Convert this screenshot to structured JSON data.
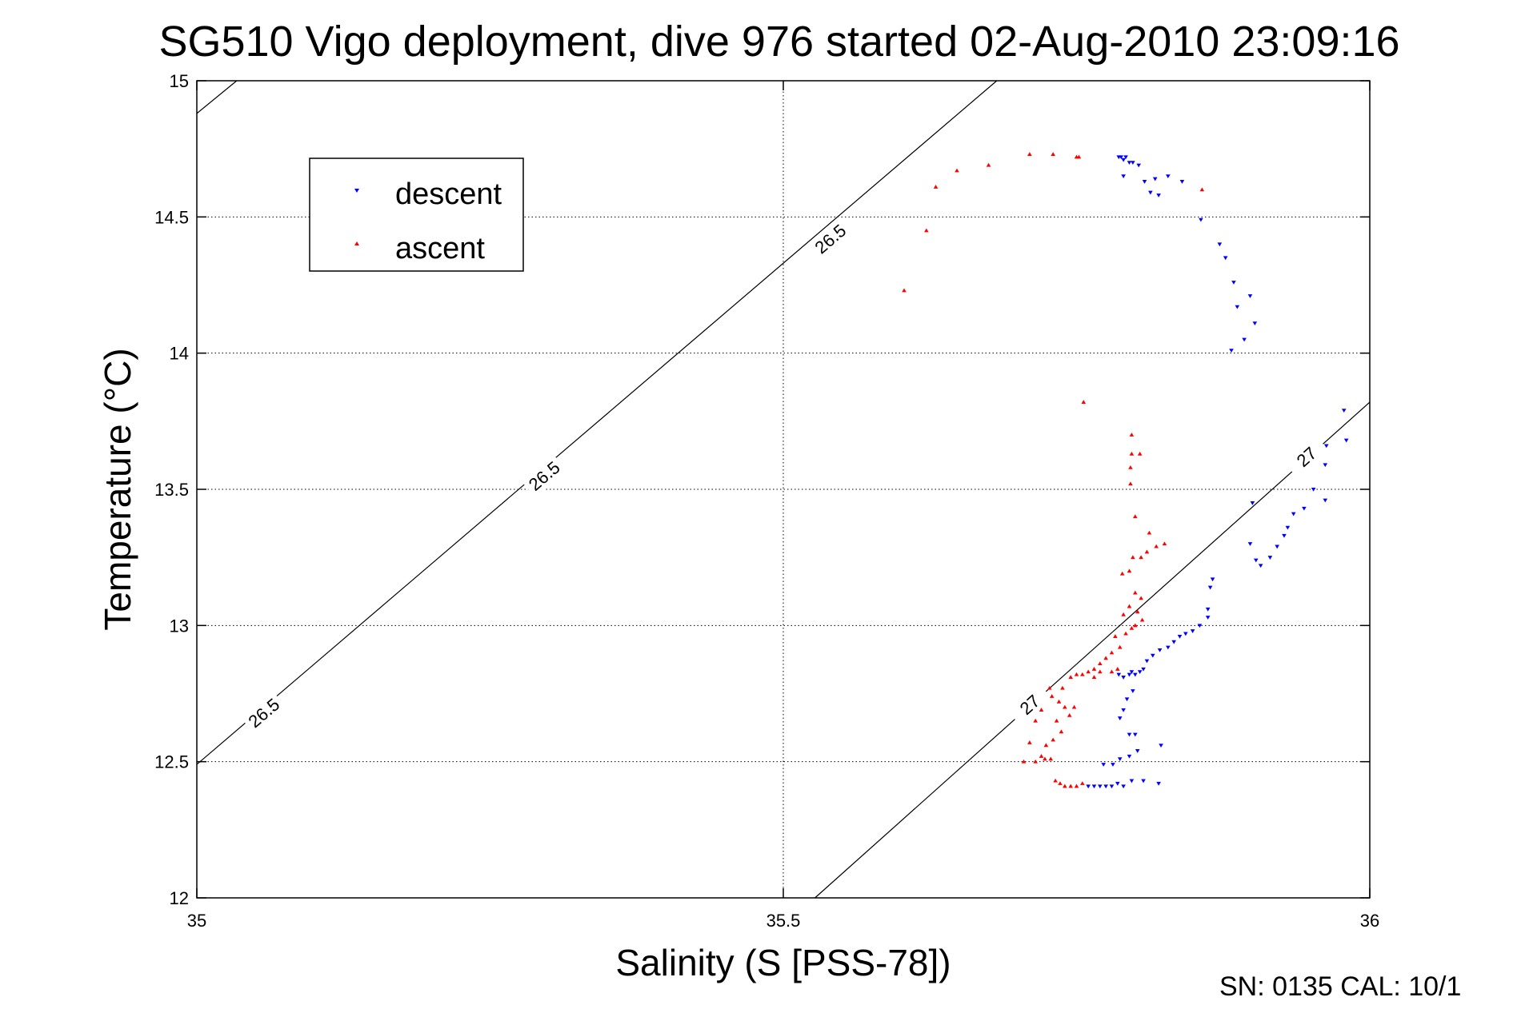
{
  "chart_data": {
    "type": "scatter",
    "title": "SG510 Vigo deployment, dive 976 started 02-Aug-2010 23:09:16",
    "xlabel": "Salinity (S [PSS-78])",
    "ylabel": "Temperature (°C)",
    "xlim": [
      35,
      36
    ],
    "ylim": [
      12,
      15
    ],
    "x_ticks": [
      "35",
      "35.5",
      "36"
    ],
    "y_ticks": [
      "12",
      "12.5",
      "13",
      "13.5",
      "14",
      "14.5",
      "15"
    ],
    "grid": true,
    "legend_position": "top-left",
    "footer": "SN: 0135  CAL: 10/1",
    "colors": {
      "descent": "#0000ff",
      "ascent": "#ff0000",
      "axes": "#000000",
      "grid": "#000000"
    },
    "contours": [
      {
        "label": "26.5",
        "lines": [
          [
            [
              35.0,
              14.88
            ],
            [
              35.034,
              15.0
            ]
          ],
          [
            [
              35.0,
              12.49
            ],
            [
              35.682,
              15.0
            ]
          ]
        ],
        "labels_at": [
          [
            35.057,
            12.68
          ],
          [
            35.296,
            13.55
          ],
          [
            35.54,
            14.42
          ]
        ]
      },
      {
        "label": "27",
        "lines": [
          [
            [
              35.527,
              12.0
            ],
            [
              36.0,
              13.82
            ]
          ]
        ],
        "labels_at": [
          [
            35.71,
            12.71
          ],
          [
            35.946,
            13.62
          ]
        ]
      }
    ],
    "series": [
      {
        "name": "descent",
        "marker": "triangle-down",
        "points": [
          [
            35.786,
            14.72
          ],
          [
            35.788,
            14.72
          ],
          [
            35.79,
            14.71
          ],
          [
            35.792,
            14.72
          ],
          [
            35.795,
            14.7
          ],
          [
            35.798,
            14.7
          ],
          [
            35.803,
            14.69
          ],
          [
            35.79,
            14.65
          ],
          [
            35.808,
            14.63
          ],
          [
            35.817,
            14.64
          ],
          [
            35.813,
            14.59
          ],
          [
            35.82,
            14.58
          ],
          [
            35.828,
            14.65
          ],
          [
            35.84,
            14.63
          ],
          [
            35.856,
            14.49
          ],
          [
            35.872,
            14.4
          ],
          [
            35.877,
            14.35
          ],
          [
            35.884,
            14.26
          ],
          [
            35.887,
            14.17
          ],
          [
            35.898,
            14.21
          ],
          [
            35.902,
            14.11
          ],
          [
            35.893,
            14.05
          ],
          [
            35.882,
            14.01
          ],
          [
            35.978,
            13.79
          ],
          [
            35.98,
            13.68
          ],
          [
            35.963,
            13.66
          ],
          [
            35.962,
            13.59
          ],
          [
            35.952,
            13.5
          ],
          [
            35.962,
            13.46
          ],
          [
            35.944,
            13.43
          ],
          [
            35.93,
            13.36
          ],
          [
            35.935,
            13.41
          ],
          [
            35.927,
            13.33
          ],
          [
            35.921,
            13.29
          ],
          [
            35.915,
            13.25
          ],
          [
            35.907,
            13.22
          ],
          [
            35.903,
            13.24
          ],
          [
            35.898,
            13.3
          ],
          [
            35.9,
            13.45
          ],
          [
            35.866,
            13.17
          ],
          [
            35.864,
            13.14
          ],
          [
            35.862,
            13.06
          ],
          [
            35.862,
            13.03
          ],
          [
            35.855,
            13.0
          ],
          [
            35.849,
            12.98
          ],
          [
            35.843,
            12.97
          ],
          [
            35.838,
            12.96
          ],
          [
            35.833,
            12.94
          ],
          [
            35.828,
            12.92
          ],
          [
            35.821,
            12.91
          ],
          [
            35.815,
            12.89
          ],
          [
            35.81,
            12.87
          ],
          [
            35.807,
            12.84
          ],
          [
            35.804,
            12.83
          ],
          [
            35.8,
            12.82
          ],
          [
            35.797,
            12.83
          ],
          [
            35.795,
            12.82
          ],
          [
            35.79,
            12.81
          ],
          [
            35.786,
            12.82
          ],
          [
            35.798,
            12.76
          ],
          [
            35.793,
            12.73
          ],
          [
            35.79,
            12.69
          ],
          [
            35.787,
            12.66
          ],
          [
            35.8,
            12.6
          ],
          [
            35.795,
            12.6
          ],
          [
            35.822,
            12.56
          ],
          [
            35.802,
            12.54
          ],
          [
            35.795,
            12.52
          ],
          [
            35.787,
            12.51
          ],
          [
            35.781,
            12.49
          ],
          [
            35.773,
            12.49
          ],
          [
            35.76,
            12.41
          ],
          [
            35.765,
            12.41
          ],
          [
            35.77,
            12.41
          ],
          [
            35.775,
            12.41
          ],
          [
            35.78,
            12.41
          ],
          [
            35.785,
            12.42
          ],
          [
            35.79,
            12.41
          ],
          [
            35.797,
            12.43
          ],
          [
            35.807,
            12.43
          ],
          [
            35.82,
            12.42
          ]
        ]
      },
      {
        "name": "ascent",
        "marker": "triangle-up",
        "points": [
          [
            35.603,
            14.23
          ],
          [
            35.622,
            14.45
          ],
          [
            35.63,
            14.61
          ],
          [
            35.648,
            14.67
          ],
          [
            35.675,
            14.69
          ],
          [
            35.71,
            14.73
          ],
          [
            35.73,
            14.73
          ],
          [
            35.75,
            14.72
          ],
          [
            35.752,
            14.72
          ],
          [
            35.857,
            14.6
          ],
          [
            35.756,
            13.82
          ],
          [
            35.797,
            13.7
          ],
          [
            35.797,
            13.63
          ],
          [
            35.796,
            13.58
          ],
          [
            35.796,
            13.52
          ],
          [
            35.804,
            13.63
          ],
          [
            35.8,
            13.4
          ],
          [
            35.812,
            13.34
          ],
          [
            35.805,
            13.25
          ],
          [
            35.81,
            13.27
          ],
          [
            35.818,
            13.29
          ],
          [
            35.825,
            13.3
          ],
          [
            35.798,
            13.25
          ],
          [
            35.795,
            13.2
          ],
          [
            35.789,
            13.19
          ],
          [
            35.8,
            13.12
          ],
          [
            35.805,
            13.1
          ],
          [
            35.795,
            13.07
          ],
          [
            35.79,
            13.04
          ],
          [
            35.802,
            13.05
          ],
          [
            35.806,
            13.02
          ],
          [
            35.8,
            13.0
          ],
          [
            35.797,
            12.99
          ],
          [
            35.792,
            12.97
          ],
          [
            35.783,
            12.96
          ],
          [
            35.787,
            12.92
          ],
          [
            35.78,
            12.9
          ],
          [
            35.775,
            12.88
          ],
          [
            35.77,
            12.86
          ],
          [
            35.765,
            12.84
          ],
          [
            35.77,
            12.83
          ],
          [
            35.765,
            12.81
          ],
          [
            35.745,
            12.81
          ],
          [
            35.75,
            12.82
          ],
          [
            35.755,
            12.82
          ],
          [
            35.76,
            12.83
          ],
          [
            35.78,
            12.83
          ],
          [
            35.785,
            12.84
          ],
          [
            35.738,
            12.77
          ],
          [
            35.729,
            12.74
          ],
          [
            35.735,
            12.72
          ],
          [
            35.74,
            12.7
          ],
          [
            35.748,
            12.7
          ],
          [
            35.744,
            12.67
          ],
          [
            35.733,
            12.65
          ],
          [
            35.715,
            12.65
          ],
          [
            35.72,
            12.69
          ],
          [
            35.727,
            12.77
          ],
          [
            35.737,
            12.61
          ],
          [
            35.73,
            12.58
          ],
          [
            35.724,
            12.56
          ],
          [
            35.72,
            12.52
          ],
          [
            35.715,
            12.5
          ],
          [
            35.705,
            12.5
          ],
          [
            35.71,
            12.57
          ],
          [
            35.728,
            12.51
          ],
          [
            35.723,
            12.51
          ],
          [
            35.732,
            12.43
          ],
          [
            35.736,
            12.42
          ],
          [
            35.74,
            12.41
          ],
          [
            35.745,
            12.41
          ],
          [
            35.75,
            12.41
          ],
          [
            35.755,
            12.42
          ]
        ]
      }
    ]
  }
}
